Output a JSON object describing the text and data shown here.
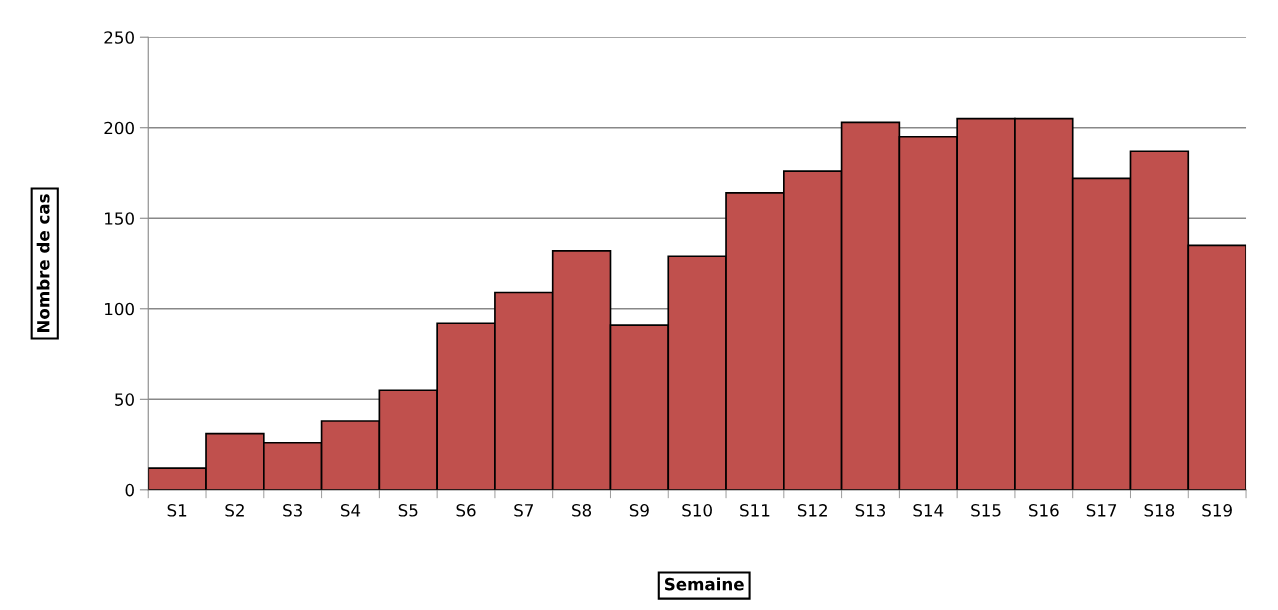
{
  "chart_data": {
    "type": "bar",
    "xlabel": "Semaine",
    "ylabel": "Nombre de cas",
    "categories": [
      "S1",
      "S2",
      "S3",
      "S4",
      "S5",
      "S6",
      "S7",
      "S8",
      "S9",
      "S10",
      "S11",
      "S12",
      "S13",
      "S14",
      "S15",
      "S16",
      "S17",
      "S18",
      "S19"
    ],
    "values": [
      12,
      31,
      26,
      38,
      55,
      92,
      109,
      132,
      91,
      129,
      164,
      176,
      203,
      195,
      205,
      205,
      172,
      187,
      135
    ],
    "color": "#c0504d",
    "ylim": [
      0,
      250
    ],
    "yticks": [
      0,
      50,
      100,
      150,
      200,
      250
    ],
    "grid": "y"
  }
}
